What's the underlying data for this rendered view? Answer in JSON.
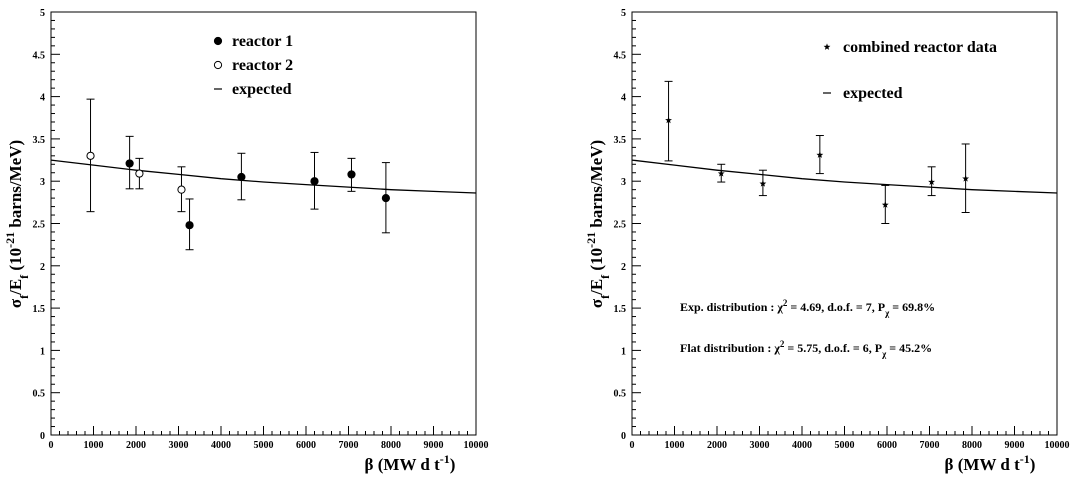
{
  "chart_data": [
    {
      "type": "scatter",
      "xlabel": {
        "prefix": "β (MW d t",
        "sup": "-1",
        "suffix": ")"
      },
      "ylabel": {
        "main": "σ",
        "sub1": "f",
        "mid": "/E",
        "sub2": "f",
        "open": " (10",
        "sup": "-21",
        "tail": " barns/MeV)"
      },
      "xlim": [
        0,
        10000
      ],
      "ylim": [
        0,
        5
      ],
      "x_ticks": [
        "0",
        "1000",
        "2000",
        "3000",
        "4000",
        "5000",
        "6000",
        "7000",
        "8000",
        "9000",
        "10000"
      ],
      "y_ticks": [
        "0",
        "0.5",
        "1",
        "1.5",
        "2",
        "2.5",
        "3",
        "3.5",
        "4",
        "4.5",
        "5"
      ],
      "series": [
        {
          "name": "reactor 1",
          "marker": "filled-circle",
          "points": [
            {
              "x": 1850,
              "y": 3.21,
              "lo": 2.91,
              "hi": 3.53
            },
            {
              "x": 3260,
              "y": 2.48,
              "lo": 2.19,
              "hi": 2.79
            },
            {
              "x": 4480,
              "y": 3.05,
              "lo": 2.78,
              "hi": 3.33
            },
            {
              "x": 6200,
              "y": 3.0,
              "lo": 2.67,
              "hi": 3.34
            },
            {
              "x": 7070,
              "y": 3.08,
              "lo": 2.88,
              "hi": 3.27
            },
            {
              "x": 7880,
              "y": 2.8,
              "lo": 2.39,
              "hi": 3.22
            }
          ]
        },
        {
          "name": "reactor 2",
          "marker": "open-circle",
          "points": [
            {
              "x": 930,
              "y": 3.3,
              "lo": 2.64,
              "hi": 3.97
            },
            {
              "x": 2080,
              "y": 3.09,
              "lo": 2.91,
              "hi": 3.27
            },
            {
              "x": 3070,
              "y": 2.9,
              "lo": 2.64,
              "hi": 3.17
            }
          ]
        }
      ],
      "curve": {
        "name": "expected",
        "x": [
          0,
          1000,
          2000,
          3000,
          4000,
          5000,
          6000,
          7000,
          8000,
          9000,
          10000
        ],
        "y": [
          3.25,
          3.19,
          3.13,
          3.08,
          3.03,
          2.99,
          2.96,
          2.93,
          2.9,
          2.88,
          2.86
        ]
      },
      "legend": [
        {
          "label": "reactor 1",
          "marker": "filled-circle"
        },
        {
          "label": "reactor 2",
          "marker": "open-circle"
        },
        {
          "label": "expected",
          "marker": "dash"
        }
      ],
      "annotations": []
    },
    {
      "type": "scatter",
      "xlabel": {
        "prefix": "β (MW d t",
        "sup": "-1",
        "suffix": ")"
      },
      "ylabel": {
        "main": "σ",
        "sub1": "f",
        "mid": "/E",
        "sub2": "f",
        "open": " (10",
        "sup": "-21",
        "tail": " barns/MeV)"
      },
      "xlim": [
        0,
        10000
      ],
      "ylim": [
        0,
        5
      ],
      "x_ticks": [
        "0",
        "1000",
        "2000",
        "3000",
        "4000",
        "5000",
        "6000",
        "7000",
        "8000",
        "9000",
        "10000"
      ],
      "y_ticks": [
        "0",
        "0.5",
        "1",
        "1.5",
        "2",
        "2.5",
        "3",
        "3.5",
        "4",
        "4.5",
        "5"
      ],
      "series": [
        {
          "name": "combined reactor data",
          "marker": "star",
          "points": [
            {
              "x": 860,
              "y": 3.72,
              "lo": 3.24,
              "hi": 4.18
            },
            {
              "x": 2100,
              "y": 3.09,
              "lo": 2.99,
              "hi": 3.2
            },
            {
              "x": 3080,
              "y": 2.97,
              "lo": 2.83,
              "hi": 3.13
            },
            {
              "x": 4420,
              "y": 3.31,
              "lo": 3.09,
              "hi": 3.54
            },
            {
              "x": 5960,
              "y": 2.72,
              "lo": 2.5,
              "hi": 2.95
            },
            {
              "x": 7050,
              "y": 2.99,
              "lo": 2.83,
              "hi": 3.17
            },
            {
              "x": 7850,
              "y": 3.03,
              "lo": 2.63,
              "hi": 3.44
            }
          ]
        }
      ],
      "curve": {
        "name": "expected",
        "x": [
          0,
          1000,
          2000,
          3000,
          4000,
          5000,
          6000,
          7000,
          8000,
          9000,
          10000
        ],
        "y": [
          3.25,
          3.19,
          3.13,
          3.08,
          3.03,
          2.99,
          2.96,
          2.93,
          2.9,
          2.88,
          2.86
        ]
      },
      "legend": [
        {
          "label": "combined reactor data",
          "marker": "star"
        },
        {
          "label": "expected",
          "marker": "dash"
        }
      ],
      "annotations": [
        {
          "pre": "Exp. distribution : χ",
          "sup": "2",
          "mid": " = 4.69, d.o.f. = 7, P",
          "sub": "χ",
          "post": " = 69.8%"
        },
        {
          "pre": "Flat distribution  : χ",
          "sup": "2",
          "mid": " = 5.75, d.o.f. = 6, P",
          "sub": "χ",
          "post": " = 45.2%"
        }
      ]
    }
  ]
}
